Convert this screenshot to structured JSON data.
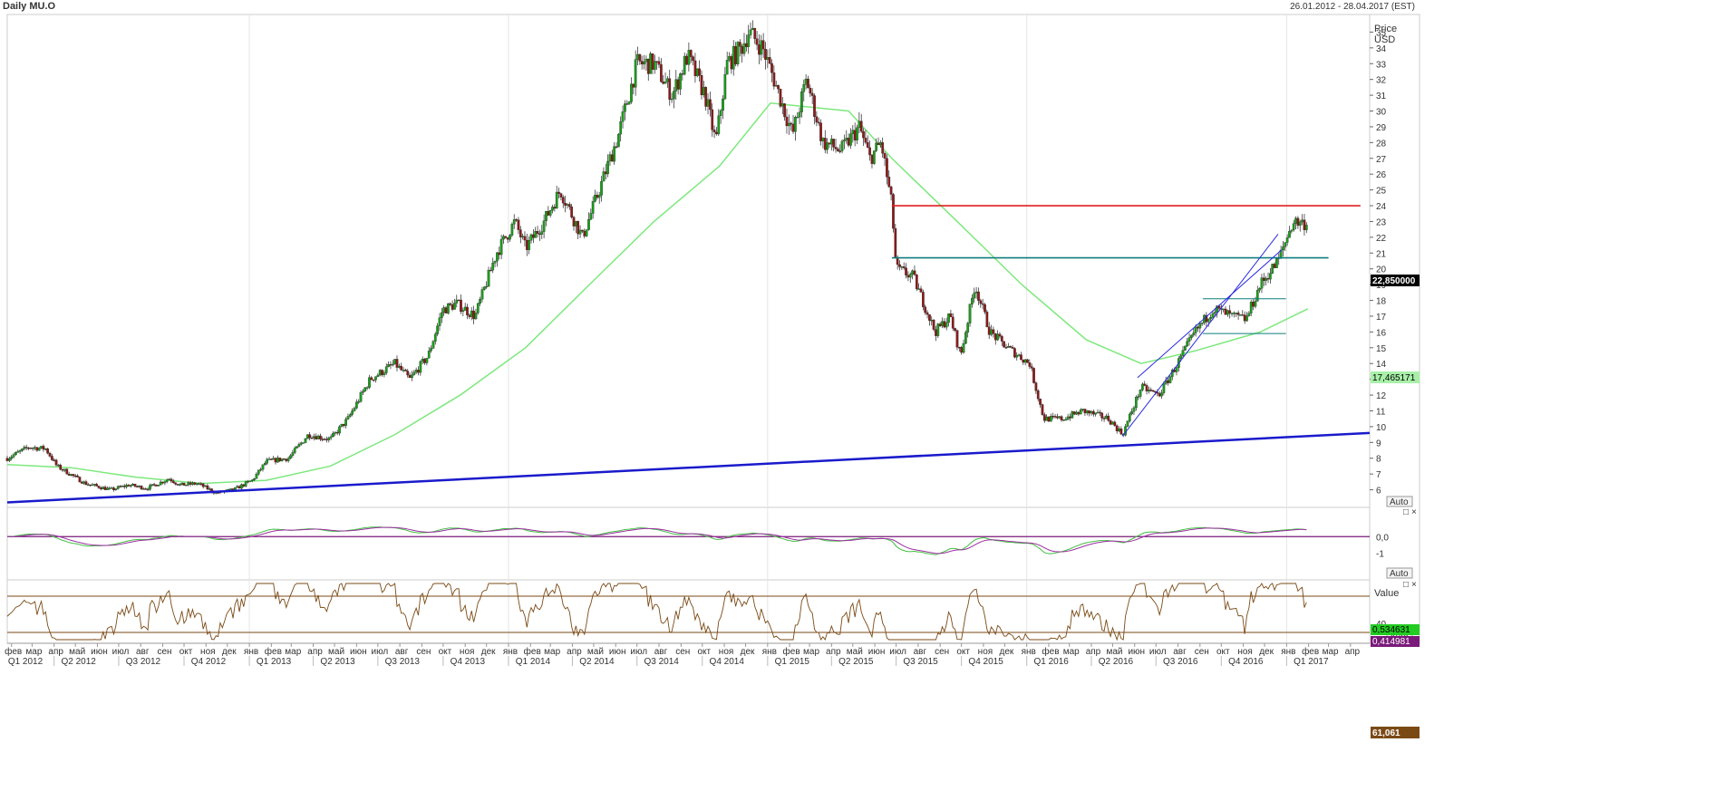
{
  "header": {
    "title": "Daily MU.O",
    "range": "26.01.2012 - 28.04.2017 (EST)"
  },
  "axes": {
    "price_title": "Price",
    "price_unit": "USD",
    "indicator_title": "Value",
    "auto_label": "Auto"
  },
  "badges": {
    "last_price": "22,850000",
    "ma_value": "17,465171",
    "macd_value": "0,534631",
    "signal_value": "0,414981",
    "rsi_value": "61,061"
  },
  "colors": {
    "candle_up": "#1a9e1a",
    "candle_down": "#8b1a1a",
    "ma_line": "#7de87d",
    "trend_line": "#1a1acc",
    "resistance": "#e02020",
    "teal_line": "#0f7c7c",
    "channel": "#2a2ae0",
    "macd": "#3fbf3f",
    "signal": "#9b2fa0",
    "rsi": "#7a4a15",
    "badge_price": "#000000",
    "badge_ma": "#a8f0a8",
    "badge_macd": "#22cc22",
    "badge_signal": "#7a1a7a",
    "badge_rsi": "#7a4a15"
  },
  "chart_data": {
    "type": "candlestick",
    "x_range": [
      "2012-01-26",
      "2017-04-28"
    ],
    "ylim": [
      5,
      36
    ],
    "y_ticks": [
      6,
      7,
      8,
      9,
      10,
      11,
      12,
      13,
      14,
      15,
      16,
      17,
      18,
      19,
      20,
      21,
      22,
      23,
      24,
      25,
      26,
      27,
      28,
      29,
      30,
      31,
      32,
      33,
      34,
      35
    ],
    "x_month_labels": [
      "фев",
      "мар",
      "апр",
      "май",
      "июн",
      "июл",
      "авг",
      "сен",
      "окт",
      "ноя",
      "дек",
      "янв",
      "фев",
      "мар",
      "апр",
      "май",
      "июн",
      "июл",
      "авг",
      "сен",
      "окт",
      "ноя",
      "дек",
      "янв",
      "фев",
      "мар",
      "апр",
      "май",
      "июн",
      "июл",
      "авг",
      "сен",
      "окт",
      "ноя",
      "дек",
      "янв",
      "фев",
      "мар",
      "апр",
      "май",
      "июн",
      "июл",
      "авг",
      "сен",
      "окт",
      "ноя",
      "дек",
      "янв",
      "фев",
      "мар",
      "апр",
      "май",
      "июн",
      "июл",
      "авг",
      "сен",
      "окт",
      "ноя",
      "дек",
      "янв",
      "фев",
      "мар",
      "апр"
    ],
    "x_quarter_labels": [
      "Q1 2012",
      "Q2 2012",
      "Q3 2012",
      "Q4 2012",
      "Q1 2013",
      "Q2 2013",
      "Q3 2013",
      "Q4 2013",
      "Q1 2014",
      "Q2 2014",
      "Q3 2014",
      "Q4 2014",
      "Q1 2015",
      "Q2 2015",
      "Q3 2015",
      "Q4 2015",
      "Q1 2016",
      "Q2 2016",
      "Q3 2016",
      "Q4 2016",
      "Q1 2017"
    ],
    "price_path": [
      [
        "2012-01-26",
        8.0
      ],
      [
        "2012-02-25",
        8.7
      ],
      [
        "2012-03-20",
        8.6
      ],
      [
        "2012-04-05",
        7.5
      ],
      [
        "2012-05-15",
        6.4
      ],
      [
        "2012-06-20",
        6.0
      ],
      [
        "2012-07-15",
        6.3
      ],
      [
        "2012-08-10",
        6.1
      ],
      [
        "2012-09-10",
        6.7
      ],
      [
        "2012-09-25",
        6.3
      ],
      [
        "2012-10-20",
        6.4
      ],
      [
        "2012-11-15",
        5.8
      ],
      [
        "2012-12-10",
        6.0
      ],
      [
        "2013-01-05",
        6.6
      ],
      [
        "2013-01-25",
        7.8
      ],
      [
        "2013-02-25",
        8.0
      ],
      [
        "2013-03-25",
        9.5
      ],
      [
        "2013-04-25",
        9.2
      ],
      [
        "2013-05-20",
        10.5
      ],
      [
        "2013-06-20",
        13.0
      ],
      [
        "2013-07-25",
        14.0
      ],
      [
        "2013-08-15",
        13.0
      ],
      [
        "2013-09-10",
        14.5
      ],
      [
        "2013-09-30",
        17.4
      ],
      [
        "2013-10-20",
        17.8
      ],
      [
        "2013-11-15",
        17.0
      ],
      [
        "2013-12-15",
        21.0
      ],
      [
        "2014-01-10",
        23.0
      ],
      [
        "2014-01-25",
        21.3
      ],
      [
        "2014-02-20",
        23.0
      ],
      [
        "2014-03-15",
        25.0
      ],
      [
        "2014-04-15",
        22.0
      ],
      [
        "2014-05-05",
        24.5
      ],
      [
        "2014-06-05",
        28.5
      ],
      [
        "2014-07-01",
        33.0
      ],
      [
        "2014-07-25",
        33.0
      ],
      [
        "2014-08-20",
        31.0
      ],
      [
        "2014-09-10",
        33.5
      ],
      [
        "2014-10-05",
        31.0
      ],
      [
        "2014-10-20",
        28.0
      ],
      [
        "2014-11-05",
        33.0
      ],
      [
        "2014-11-25",
        34.0
      ],
      [
        "2014-12-05",
        35.0
      ],
      [
        "2014-12-25",
        34.0
      ],
      [
        "2015-01-10",
        32.0
      ],
      [
        "2015-02-05",
        28.5
      ],
      [
        "2015-02-25",
        32.0
      ],
      [
        "2015-03-20",
        28.0
      ],
      [
        "2015-04-15",
        27.5
      ],
      [
        "2015-05-10",
        29.0
      ],
      [
        "2015-05-25",
        27.0
      ],
      [
        "2015-06-10",
        28.0
      ],
      [
        "2015-06-25",
        24.0
      ],
      [
        "2015-07-01",
        20.0
      ],
      [
        "2015-07-25",
        19.5
      ],
      [
        "2015-08-25",
        16.0
      ],
      [
        "2015-09-15",
        17.0
      ],
      [
        "2015-09-30",
        14.5
      ],
      [
        "2015-10-20",
        19.0
      ],
      [
        "2015-11-10",
        16.0
      ],
      [
        "2015-12-05",
        15.0
      ],
      [
        "2016-01-05",
        14.0
      ],
      [
        "2016-01-25",
        10.5
      ],
      [
        "2016-02-20",
        10.5
      ],
      [
        "2016-03-20",
        11.0
      ],
      [
        "2016-04-25",
        10.5
      ],
      [
        "2016-05-15",
        9.5
      ],
      [
        "2016-06-10",
        12.5
      ],
      [
        "2016-07-05",
        12.0
      ],
      [
        "2016-07-25",
        13.5
      ],
      [
        "2016-08-25",
        16.0
      ],
      [
        "2016-09-20",
        17.5
      ],
      [
        "2016-10-15",
        17.0
      ],
      [
        "2016-11-05",
        16.8
      ],
      [
        "2016-11-25",
        19.0
      ],
      [
        "2016-12-20",
        20.5
      ],
      [
        "2017-01-10",
        23.0
      ],
      [
        "2017-01-31",
        22.85
      ]
    ],
    "ma_path": [
      [
        "2012-01-26",
        7.6
      ],
      [
        "2012-04-25",
        7.4
      ],
      [
        "2012-07-25",
        6.8
      ],
      [
        "2012-10-25",
        6.4
      ],
      [
        "2013-01-25",
        6.6
      ],
      [
        "2013-04-25",
        7.5
      ],
      [
        "2013-07-25",
        9.5
      ],
      [
        "2013-10-25",
        12.0
      ],
      [
        "2014-01-25",
        15.0
      ],
      [
        "2014-04-25",
        19.0
      ],
      [
        "2014-07-25",
        23.0
      ],
      [
        "2014-10-25",
        26.5
      ],
      [
        "2015-01-05",
        30.5
      ],
      [
        "2015-04-25",
        30.0
      ],
      [
        "2015-06-25",
        27.0
      ],
      [
        "2015-09-25",
        23.0
      ],
      [
        "2015-12-25",
        19.0
      ],
      [
        "2016-03-25",
        15.5
      ],
      [
        "2016-06-10",
        14.0
      ],
      [
        "2016-08-25",
        14.8
      ],
      [
        "2016-11-25",
        16.0
      ],
      [
        "2017-01-31",
        17.47
      ]
    ],
    "lines": [
      {
        "from": [
          "2012-01-26",
          5.2
        ],
        "to": [
          "2017-04-28",
          9.6
        ],
        "color": "trend_line"
      },
      {
        "from": [
          "2015-06-25",
          24.0
        ],
        "to": [
          "2017-04-15",
          24.0
        ],
        "color": "resistance"
      },
      {
        "from": [
          "2015-06-25",
          20.7
        ],
        "to": [
          "2017-03-01",
          20.7
        ],
        "color": "teal_line"
      },
      {
        "from": [
          "2016-09-05",
          18.1
        ],
        "to": [
          "2016-12-31",
          18.1
        ],
        "color": "teal_line"
      },
      {
        "from": [
          "2016-09-05",
          15.9
        ],
        "to": [
          "2016-12-31",
          15.9
        ],
        "color": "teal_line"
      },
      {
        "from": [
          "2016-05-15",
          9.4
        ],
        "to": [
          "2016-12-20",
          22.2
        ],
        "color": "channel"
      },
      {
        "from": [
          "2016-06-05",
          13.1
        ],
        "to": [
          "2016-12-25",
          21.2
        ],
        "color": "channel"
      }
    ],
    "macd_ylim": [
      -2.5,
      1.6
    ],
    "macd_ticks": [
      0,
      -1
    ],
    "rsi_ylim": [
      20,
      85
    ],
    "rsi_ticks": [
      40
    ],
    "rsi_levels": [
      70,
      30
    ]
  }
}
